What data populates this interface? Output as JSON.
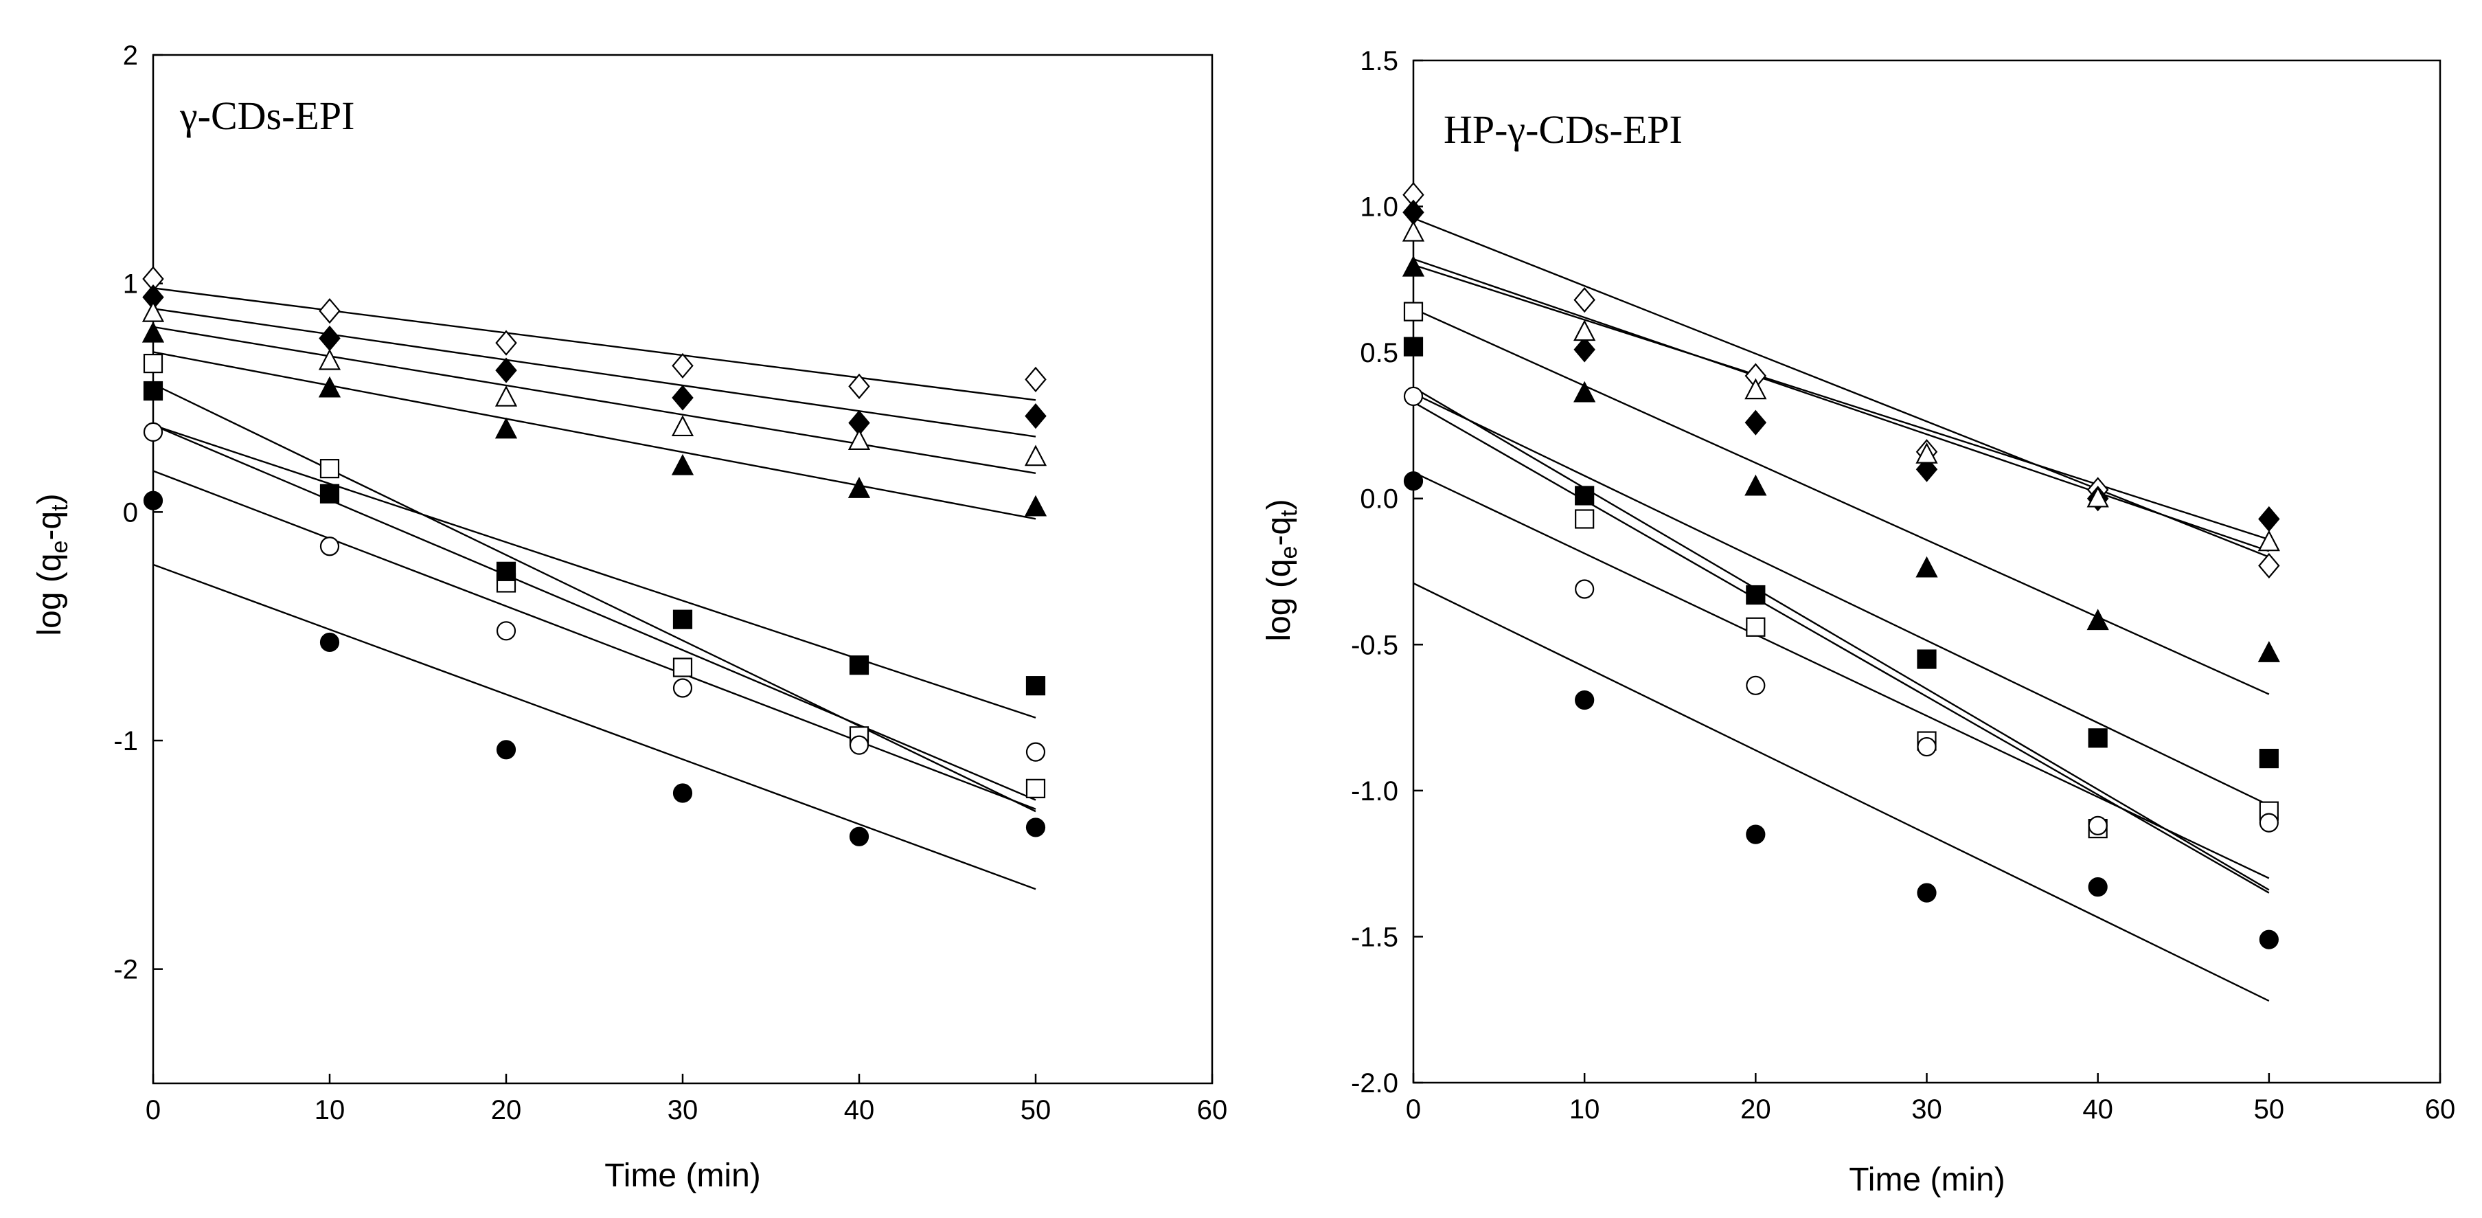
{
  "chart_data": [
    {
      "type": "scatter",
      "title": "γ-CDs-EPI",
      "xlabel": "Time (min)",
      "ylabel": "log (q",
      "ylabel_sub1": "e",
      "ylabel_mid": "-q",
      "ylabel_sub2": "t",
      "ylabel_end": ")",
      "xlim": [
        0,
        60
      ],
      "ylim": [
        -2.5,
        2
      ],
      "xticks": [
        0,
        10,
        20,
        30,
        40,
        50,
        60
      ],
      "xtick_labels": [
        "0",
        "10",
        "20",
        "30",
        "40",
        "50",
        "60"
      ],
      "yticks": [
        2,
        1,
        0,
        -1,
        -2
      ],
      "ytick_labels": [
        "2",
        "1",
        "0",
        "-1",
        "-2"
      ],
      "x": [
        0,
        10,
        20,
        30,
        40,
        50
      ],
      "series": [
        {
          "name": "open-diamond",
          "marker": "diamond",
          "filled": false,
          "values": [
            1.02,
            0.88,
            0.74,
            0.64,
            0.55,
            0.58
          ],
          "fit": [
            0.98,
            0.49
          ]
        },
        {
          "name": "filled-diamond",
          "marker": "diamond",
          "filled": true,
          "values": [
            0.94,
            0.76,
            0.62,
            0.5,
            0.39,
            0.42
          ],
          "fit": [
            0.89,
            0.33
          ]
        },
        {
          "name": "open-triangle",
          "marker": "triangle",
          "filled": false,
          "values": [
            0.87,
            0.66,
            0.5,
            0.37,
            0.31,
            0.24
          ],
          "fit": [
            0.81,
            0.17
          ]
        },
        {
          "name": "filled-triangle",
          "marker": "triangle",
          "filled": true,
          "values": [
            0.78,
            0.54,
            0.36,
            0.2,
            0.1,
            0.02
          ],
          "fit": [
            0.7,
            -0.03
          ]
        },
        {
          "name": "open-square",
          "marker": "square",
          "filled": false,
          "values": [
            0.65,
            0.19,
            -0.31,
            -0.68,
            -0.98,
            -1.21
          ],
          "fit": [
            0.56,
            -1.31
          ]
        },
        {
          "name": "filled-square",
          "marker": "square",
          "filled": true,
          "values": [
            0.53,
            0.08,
            -0.26,
            -0.47,
            -0.67,
            -0.76
          ],
          "fit": [
            0.38,
            -0.9
          ]
        },
        {
          "name": "open-circle",
          "marker": "circle",
          "filled": false,
          "values": [
            0.35,
            -0.15,
            -0.52,
            -0.77,
            -1.02,
            -1.05
          ],
          "fit": [
            0.38,
            -1.26
          ]
        },
        {
          "name": "filled-circle-upper",
          "marker": "circle",
          "filled": true,
          "values": [
            0.05,
            null,
            null,
            null,
            null,
            -1.38
          ],
          "fit": [
            0.18,
            -1.3
          ]
        },
        {
          "name": "filled-circle-lower",
          "marker": "circle",
          "filled": true,
          "values": [
            null,
            -0.57,
            -1.04,
            -1.23,
            -1.42,
            null
          ],
          "fit": [
            -0.23,
            -1.65
          ]
        }
      ]
    },
    {
      "type": "scatter",
      "title": "HP-γ-CDs-EPI",
      "xlabel": "Time (min)",
      "ylabel": "log (q",
      "ylabel_sub1": "e",
      "ylabel_mid": "-q",
      "ylabel_sub2": "t",
      "ylabel_end": ")",
      "xlim": [
        0,
        60
      ],
      "ylim": [
        -2.0,
        1.5
      ],
      "xticks": [
        0,
        10,
        20,
        30,
        40,
        50,
        60
      ],
      "xtick_labels": [
        "0",
        "10",
        "20",
        "30",
        "40",
        "50",
        "60"
      ],
      "yticks": [
        1.5,
        1.0,
        0.5,
        0.0,
        -0.5,
        -1.0,
        -1.5,
        -2.0
      ],
      "ytick_labels": [
        "1.5",
        "1.0",
        "0.5",
        "0.0",
        "-0.5",
        "-1.0",
        "-1.5",
        "-2.0"
      ],
      "x": [
        0,
        10,
        20,
        30,
        40,
        50
      ],
      "series": [
        {
          "name": "open-diamond",
          "marker": "diamond",
          "filled": false,
          "values": [
            1.04,
            0.68,
            0.42,
            0.16,
            0.03,
            -0.23
          ],
          "fit": [
            0.96,
            -0.2
          ]
        },
        {
          "name": "filled-diamond",
          "marker": "diamond",
          "filled": true,
          "values": [
            0.98,
            0.51,
            0.26,
            0.1,
            0.0,
            -0.07
          ],
          "fit": [
            0.82,
            -0.18
          ]
        },
        {
          "name": "open-triangle",
          "marker": "triangle",
          "filled": false,
          "values": [
            0.91,
            0.57,
            0.37,
            0.15,
            0.0,
            -0.15
          ],
          "fit": [
            0.8,
            -0.14
          ]
        },
        {
          "name": "filled-triangle",
          "marker": "triangle",
          "filled": true,
          "values": [
            0.79,
            0.36,
            0.04,
            -0.24,
            -0.42,
            -0.53
          ],
          "fit": [
            0.65,
            -0.67
          ]
        },
        {
          "name": "open-square",
          "marker": "square",
          "filled": false,
          "values": [
            0.64,
            -0.07,
            -0.44,
            -0.83,
            -1.13,
            -1.07
          ],
          "fit": [
            0.38,
            -1.34
          ]
        },
        {
          "name": "filled-square",
          "marker": "square",
          "filled": true,
          "values": [
            0.52,
            0.01,
            -0.33,
            -0.55,
            -0.82,
            -0.89
          ],
          "fit": [
            0.36,
            -1.05
          ]
        },
        {
          "name": "open-circle",
          "marker": "circle",
          "filled": false,
          "values": [
            0.35,
            -0.31,
            -0.64,
            -0.85,
            -1.12,
            -1.11
          ],
          "fit": [
            0.33,
            -1.35
          ]
        },
        {
          "name": "filled-circle",
          "marker": "circle",
          "filled": true,
          "values": [
            0.06,
            -0.69,
            -1.15,
            -1.35,
            -1.33,
            -1.51
          ],
          "fit": [
            0.09,
            -1.3
          ]
        },
        {
          "name": "extra-fit",
          "marker": "none",
          "filled": true,
          "values": [
            null,
            null,
            null,
            null,
            null,
            null
          ],
          "fit": [
            -0.29,
            -1.72
          ]
        }
      ]
    }
  ]
}
